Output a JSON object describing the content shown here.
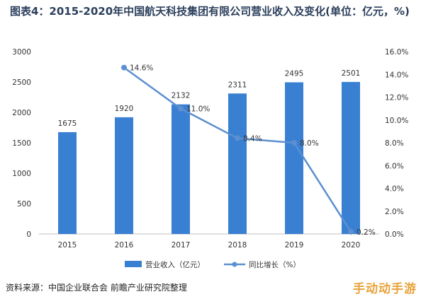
{
  "header": {
    "title": "图表4：2015-2020年中国航天科技集团有限公司营业收入及变化(单位：亿元，%)"
  },
  "chart_data": {
    "type": "bar",
    "categories": [
      "2015",
      "2016",
      "2017",
      "2018",
      "2019",
      "2020"
    ],
    "series": [
      {
        "name": "营业收入（亿元）",
        "type": "bar",
        "axis": "left",
        "values": [
          1675,
          1920,
          2132,
          2311,
          2495,
          2501
        ],
        "labels": [
          "1675",
          "1920",
          "2132",
          "2311",
          "2495",
          "2501"
        ],
        "color": "#3a80d2"
      },
      {
        "name": "同比增长（%）",
        "type": "line",
        "axis": "right",
        "values": [
          null,
          14.6,
          11.0,
          8.4,
          8.0,
          0.2
        ],
        "labels": [
          "",
          "14.6%",
          "11.0%",
          "8.4%",
          "8.0%",
          "0.2%"
        ],
        "color": "#5b8fcf"
      }
    ],
    "y_left": {
      "range": [
        0,
        3000
      ],
      "ticks": [
        0,
        500,
        1000,
        1500,
        2000,
        2500,
        3000
      ],
      "tick_labels": [
        "0",
        "500",
        "1000",
        "1500",
        "2000",
        "2500",
        "3000"
      ]
    },
    "y_right": {
      "range": [
        0,
        16
      ],
      "ticks": [
        0,
        2,
        4,
        6,
        8,
        10,
        12,
        14,
        16
      ],
      "tick_labels": [
        "0.0%",
        "2.0%",
        "4.0%",
        "6.0%",
        "8.0%",
        "10.0%",
        "12.0%",
        "14.0%",
        "16.0%"
      ]
    },
    "grid": false,
    "legend": "bottom-center"
  },
  "footer": {
    "source": "资料来源：中国企业联合会 前瞻产业研究院整理",
    "corner_text": "手动动手游"
  }
}
